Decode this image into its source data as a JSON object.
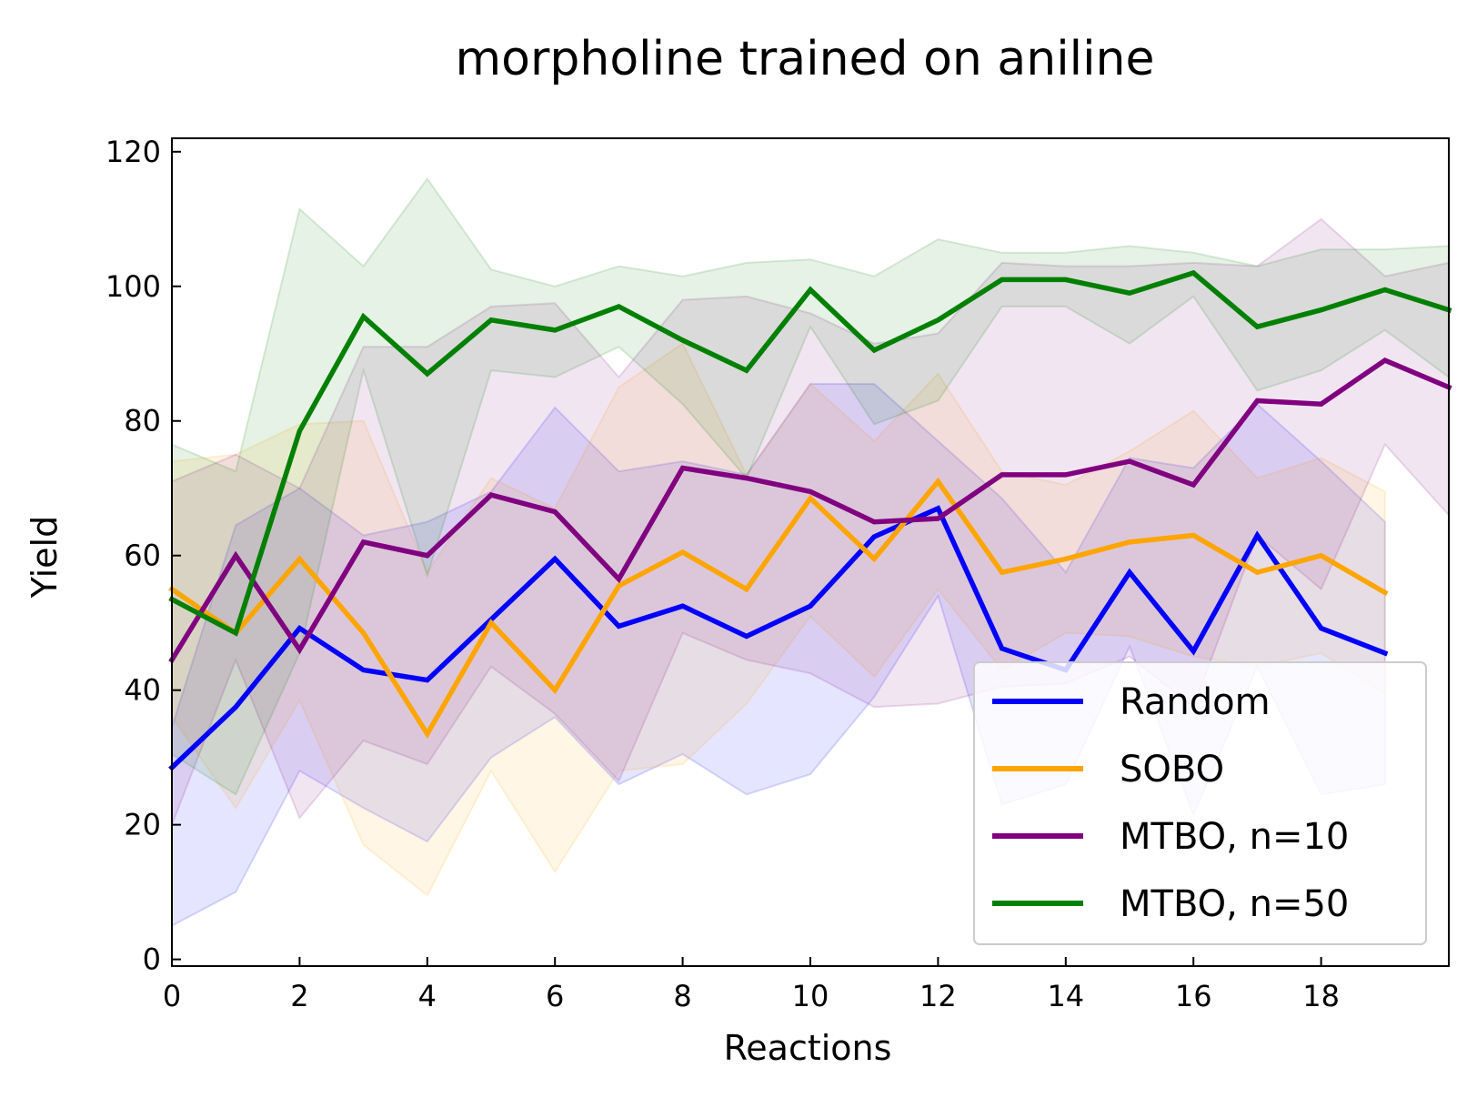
{
  "chart_data": {
    "type": "line",
    "title": "morpholine trained on aniline",
    "xlabel": "Reactions",
    "ylabel": "Yield",
    "xlim": [
      0,
      20
    ],
    "ylim": [
      -1,
      122
    ],
    "xticks": [
      0,
      2,
      4,
      6,
      8,
      10,
      12,
      14,
      16,
      18
    ],
    "yticks": [
      0,
      20,
      40,
      60,
      80,
      100,
      120
    ],
    "grid": false,
    "legend_position": "lower-right",
    "series": [
      {
        "name": "Random",
        "color": "#0000ff",
        "x": [
          0,
          1,
          2,
          3,
          4,
          5,
          6,
          7,
          8,
          9,
          10,
          11,
          12,
          13,
          14,
          15,
          16,
          17,
          18,
          19
        ],
        "values": [
          28.5,
          37.5,
          49.2,
          43.0,
          41.5,
          50.5,
          59.5,
          49.5,
          52.5,
          48.0,
          52.5,
          62.8,
          67.0,
          46.2,
          43.0,
          57.5,
          45.8,
          63.0,
          49.2,
          45.5
        ],
        "upper": [
          34.5,
          64.5,
          70.0,
          63.0,
          65.0,
          69.5,
          82.0,
          72.5,
          74.0,
          72.0,
          85.5,
          85.5,
          77.0,
          68.5,
          57.5,
          74.5,
          73.0,
          82.5,
          74.0,
          65.0
        ],
        "lower": [
          5.0,
          10.0,
          28.0,
          22.5,
          17.5,
          30.0,
          36.0,
          26.0,
          30.5,
          24.5,
          27.5,
          39.0,
          54.0,
          23.0,
          26.0,
          46.5,
          21.5,
          43.5,
          24.5,
          26.0
        ]
      },
      {
        "name": "SOBO",
        "color": "#ffa500",
        "x": [
          0,
          1,
          2,
          3,
          4,
          5,
          6,
          7,
          8,
          9,
          10,
          11,
          12,
          13,
          14,
          15,
          16,
          17,
          18,
          19
        ],
        "values": [
          55.0,
          48.5,
          59.5,
          48.5,
          33.5,
          50.0,
          40.0,
          55.5,
          60.5,
          55.0,
          68.5,
          59.5,
          71.0,
          57.5,
          59.5,
          62.0,
          63.0,
          57.5,
          60.0,
          54.5
        ],
        "upper": [
          74.0,
          75.0,
          79.5,
          80.0,
          57.5,
          71.5,
          67.0,
          85.0,
          91.5,
          72.0,
          85.5,
          77.0,
          87.0,
          72.5,
          70.5,
          75.5,
          81.5,
          71.5,
          74.5,
          69.5
        ],
        "lower": [
          36.0,
          22.5,
          38.5,
          17.0,
          9.5,
          28.0,
          13.0,
          28.0,
          29.0,
          38.0,
          51.0,
          42.0,
          55.0,
          43.0,
          48.5,
          48.0,
          45.0,
          43.5,
          45.5,
          39.5
        ]
      },
      {
        "name": "MTBO, n=10",
        "color": "#800080",
        "x": [
          0,
          1,
          2,
          3,
          4,
          5,
          6,
          7,
          8,
          9,
          10,
          11,
          12,
          13,
          14,
          15,
          16,
          17,
          18,
          19,
          20
        ],
        "values": [
          44.5,
          60.0,
          46.0,
          62.0,
          60.0,
          69.0,
          66.5,
          56.5,
          73.0,
          71.5,
          69.5,
          65.0,
          65.5,
          72.0,
          72.0,
          74.0,
          70.5,
          83.0,
          82.5,
          89.0,
          85.0
        ],
        "upper": [
          71.0,
          75.0,
          70.0,
          91.0,
          91.0,
          97.0,
          97.5,
          86.5,
          98.0,
          98.5,
          96.0,
          91.5,
          93.0,
          103.5,
          103.0,
          103.0,
          103.5,
          103.0,
          110.0,
          101.5,
          103.5
        ],
        "lower": [
          20.0,
          44.5,
          21.0,
          32.5,
          29.0,
          43.5,
          36.5,
          26.5,
          48.5,
          44.5,
          42.5,
          37.5,
          38.0,
          40.5,
          41.0,
          45.0,
          37.5,
          63.0,
          55.0,
          76.5,
          66.0
        ]
      },
      {
        "name": "MTBO, n=50",
        "color": "#008000",
        "x": [
          0,
          1,
          2,
          3,
          4,
          5,
          6,
          7,
          8,
          9,
          10,
          11,
          12,
          13,
          14,
          15,
          16,
          17,
          18,
          19,
          20
        ],
        "values": [
          53.5,
          48.5,
          78.5,
          95.5,
          87.0,
          95.0,
          93.5,
          97.0,
          92.0,
          87.5,
          99.5,
          90.5,
          95.0,
          101.0,
          101.0,
          99.0,
          102.0,
          94.0,
          96.5,
          99.5,
          96.5
        ],
        "upper": [
          76.5,
          72.5,
          111.5,
          103.0,
          116.0,
          102.5,
          100.0,
          103.0,
          101.5,
          103.5,
          104.0,
          101.5,
          107.0,
          105.0,
          105.0,
          106.0,
          105.0,
          103.0,
          105.5,
          105.5,
          106.0
        ],
        "lower": [
          30.5,
          24.5,
          45.5,
          87.5,
          57.0,
          87.5,
          86.5,
          91.0,
          82.5,
          71.5,
          94.0,
          79.5,
          83.0,
          97.0,
          97.0,
          91.5,
          98.5,
          84.5,
          87.5,
          93.5,
          86.5
        ]
      }
    ]
  }
}
